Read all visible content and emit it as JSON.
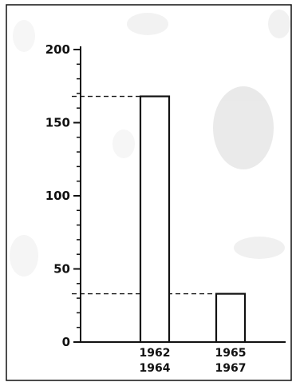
{
  "chart_data": {
    "type": "bar",
    "title": "",
    "xlabel": "",
    "ylabel": "",
    "categories": [
      [
        "1962",
        "1964"
      ],
      [
        "1965",
        "1967"
      ]
    ],
    "values": [
      168,
      33
    ],
    "ylim": [
      0,
      200
    ],
    "yticks_major": [
      0,
      50,
      100,
      150,
      200
    ],
    "yticks_minor_step": 10,
    "reference_lines": [
      168,
      33
    ],
    "grid": false,
    "legend": "none",
    "colors": {
      "ink": "#111111",
      "bar_fill": "#ffffff",
      "background": "#ffffff"
    }
  }
}
